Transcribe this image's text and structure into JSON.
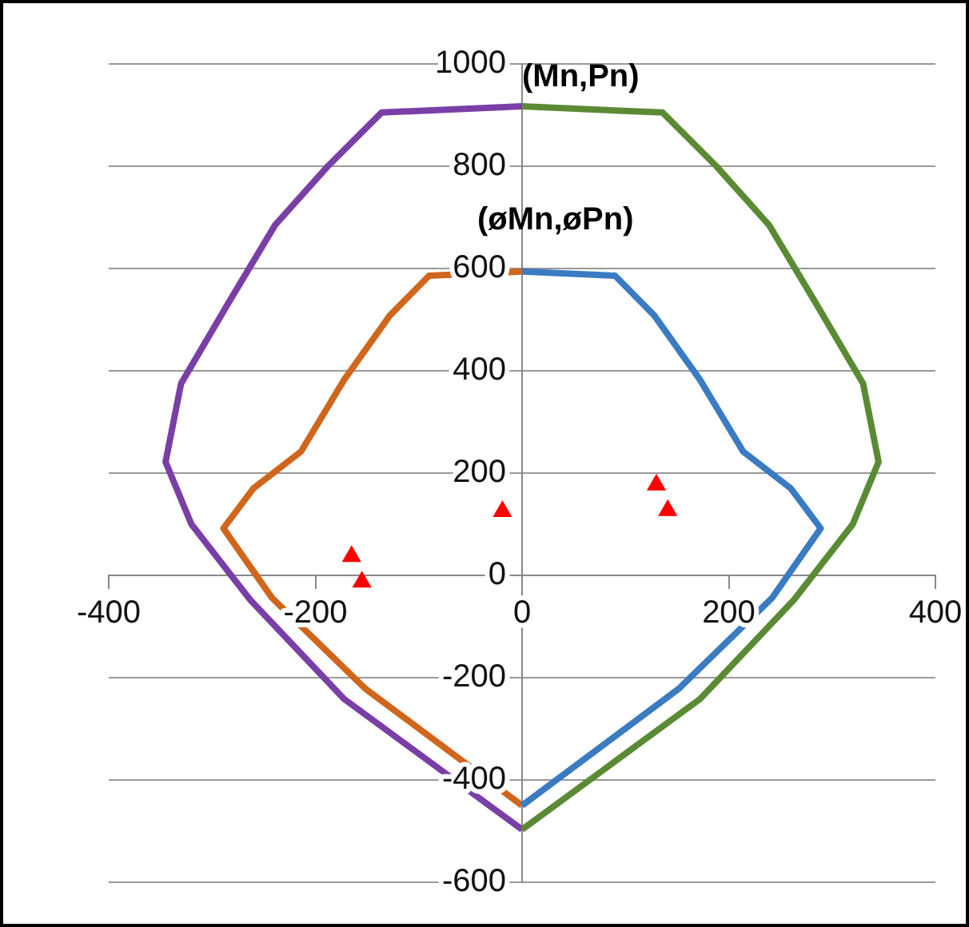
{
  "chart_data": {
    "type": "line",
    "xlim": [
      -400,
      400
    ],
    "xticks": [
      -400,
      -200,
      0,
      200,
      400
    ],
    "ylim": [
      -600,
      1000
    ],
    "yticks": [
      -600,
      -400,
      -200,
      0,
      200,
      400,
      600,
      800,
      {
        "value": 1000,
        "label": "1000"
      }
    ],
    "grid": "y",
    "legend": false,
    "line_style": "solid",
    "series": [
      {
        "type": "line",
        "color": "#5b8a34",
        "marker": "none",
        "x": [
          0,
          136,
          188,
          239,
          282,
          330,
          345,
          320,
          263,
          172,
          0
        ],
        "values": [
          917,
          905,
          800,
          685,
          540,
          375,
          222,
          100,
          -48,
          -242,
          -497
        ]
      },
      {
        "type": "line",
        "color": "#7a3fa6",
        "marker": "none",
        "x": [
          0,
          -136,
          -188,
          -239,
          -282,
          -330,
          -345,
          -320,
          -263,
          -172,
          0
        ],
        "values": [
          917,
          905,
          800,
          685,
          540,
          375,
          222,
          100,
          -48,
          -242,
          -497
        ]
      },
      {
        "type": "line",
        "color": "#3a7bc2",
        "marker": "none",
        "x": [
          0,
          90,
          128,
          172,
          214,
          260,
          289,
          242,
          152,
          0
        ],
        "values": [
          594,
          586,
          508,
          383,
          242,
          170,
          92,
          -44,
          -221,
          -450
        ]
      },
      {
        "type": "line",
        "color": "#d0661c",
        "marker": "none",
        "x": [
          0,
          -90,
          -128,
          -172,
          -214,
          -260,
          -289,
          -242,
          -152,
          0
        ],
        "values": [
          594,
          586,
          508,
          383,
          242,
          170,
          92,
          -44,
          -221,
          -450
        ]
      },
      {
        "type": "scatter",
        "color": "#ff0000",
        "marker": "triangle",
        "x": [
          -19,
          -165,
          -155,
          130,
          141
        ],
        "values": [
          125,
          37,
          -13,
          177,
          127
        ]
      }
    ],
    "annotations": [
      "(Mn,Pn)",
      "(øMn,øPn)"
    ]
  }
}
